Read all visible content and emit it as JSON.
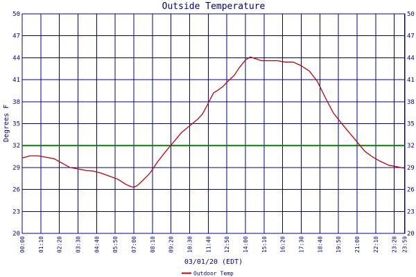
{
  "chart_data": {
    "type": "line",
    "title": "Outside Temperature",
    "ylabel": "Degrees F",
    "xlabel": "03/01/20 (EDT)",
    "ylim": [
      20,
      50
    ],
    "yticks": [
      20,
      23,
      26,
      29,
      32,
      35,
      38,
      41,
      44,
      47,
      50
    ],
    "x_range_hours": [
      0,
      24
    ],
    "xticks": [
      {
        "label": "00:00",
        "hour": 0
      },
      {
        "label": "01:10",
        "hour": 1.1667
      },
      {
        "label": "02:20",
        "hour": 2.3333
      },
      {
        "label": "03:30",
        "hour": 3.5
      },
      {
        "label": "04:40",
        "hour": 4.6667
      },
      {
        "label": "05:50",
        "hour": 5.8333
      },
      {
        "label": "07:00",
        "hour": 7.0
      },
      {
        "label": "08:10",
        "hour": 8.1667
      },
      {
        "label": "09:20",
        "hour": 9.3333
      },
      {
        "label": "10:30",
        "hour": 10.5
      },
      {
        "label": "11:40",
        "hour": 11.6667
      },
      {
        "label": "12:50",
        "hour": 12.8333
      },
      {
        "label": "14:00",
        "hour": 14.0
      },
      {
        "label": "15:10",
        "hour": 15.1667
      },
      {
        "label": "16:20",
        "hour": 16.3333
      },
      {
        "label": "17:30",
        "hour": 17.5
      },
      {
        "label": "18:40",
        "hour": 18.6667
      },
      {
        "label": "19:50",
        "hour": 19.8333
      },
      {
        "label": "21:00",
        "hour": 21.0
      },
      {
        "label": "22:10",
        "hour": 22.1667
      },
      {
        "label": "23:20",
        "hour": 23.3333
      },
      {
        "label": "23:59",
        "hour": 23.9833
      }
    ],
    "grid": true,
    "freezing_line": {
      "value": 32,
      "color": "#008000"
    },
    "legend": {
      "position": "bottom-left"
    },
    "series": [
      {
        "name": "Outdoor Temp",
        "color": "#c00000",
        "x": [
          0,
          0.5,
          1.0,
          1.5,
          2.0,
          2.5,
          3.0,
          3.5,
          4.0,
          4.5,
          5.0,
          5.5,
          6.0,
          6.5,
          6.8,
          7.0,
          7.2,
          7.5,
          8.0,
          8.5,
          9.0,
          9.5,
          10.0,
          10.5,
          11.0,
          11.3,
          11.6,
          12.0,
          12.3,
          12.6,
          13.0,
          13.3,
          13.6,
          14.0,
          14.3,
          15.0,
          15.5,
          16.0,
          16.5,
          17.0,
          17.5,
          18.0,
          18.5,
          19.0,
          19.5,
          20.0,
          20.5,
          21.0,
          21.5,
          22.0,
          22.5,
          23.0,
          23.5,
          24.0
        ],
        "values": [
          30.3,
          30.6,
          30.6,
          30.4,
          30.2,
          29.6,
          29.0,
          28.8,
          28.6,
          28.5,
          28.2,
          27.8,
          27.4,
          26.7,
          26.4,
          26.3,
          26.5,
          27.1,
          28.2,
          29.8,
          31.2,
          32.5,
          33.8,
          34.7,
          35.6,
          36.3,
          37.5,
          39.2,
          39.6,
          40.1,
          41.0,
          41.6,
          42.6,
          43.7,
          44.1,
          43.6,
          43.6,
          43.6,
          43.4,
          43.4,
          42.9,
          42.2,
          40.8,
          38.6,
          36.5,
          35.1,
          33.8,
          32.5,
          31.2,
          30.4,
          29.8,
          29.3,
          29.1,
          28.9
        ]
      }
    ]
  }
}
